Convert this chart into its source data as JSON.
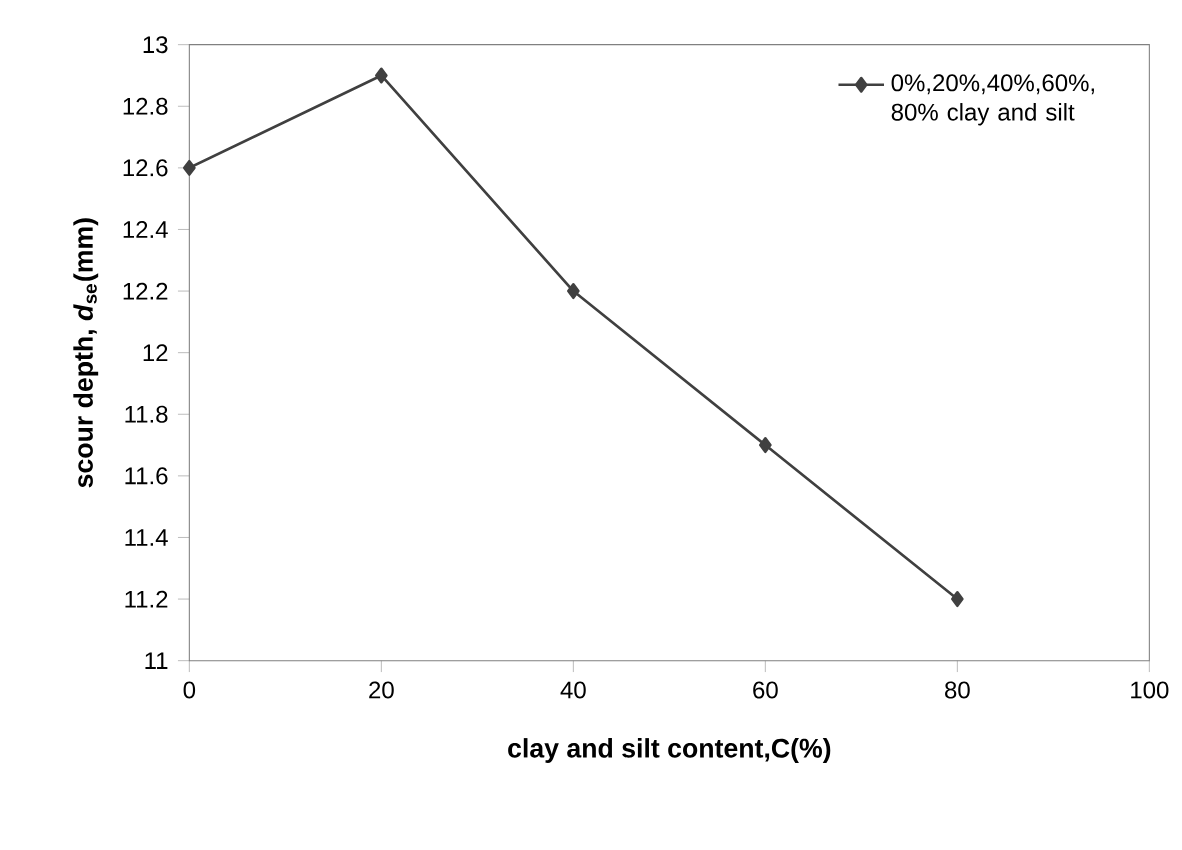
{
  "chart_data": {
    "type": "line",
    "xlabel": "clay and silt content,C(%)",
    "ylabel": "scour depth, *d*$_{se}$(mm)",
    "x": [
      0,
      20,
      40,
      60,
      80
    ],
    "series": [
      {
        "name": "0%,20%,40%,60%, 80% clay and silt",
        "color": "#404040",
        "values": [
          12.6,
          12.9,
          12.2,
          11.7,
          11.2
        ]
      }
    ],
    "xlim": [
      0,
      100
    ],
    "xticks": [
      0,
      20,
      40,
      60,
      80,
      100
    ],
    "ylim": [
      11,
      13
    ],
    "yticks": [
      11,
      11.2,
      11.4,
      11.6,
      11.8,
      12,
      12.2,
      12.4,
      12.6,
      12.8,
      13
    ],
    "grid": false,
    "legend": "top right",
    "marker": "diamond",
    "line_style": "solid"
  }
}
